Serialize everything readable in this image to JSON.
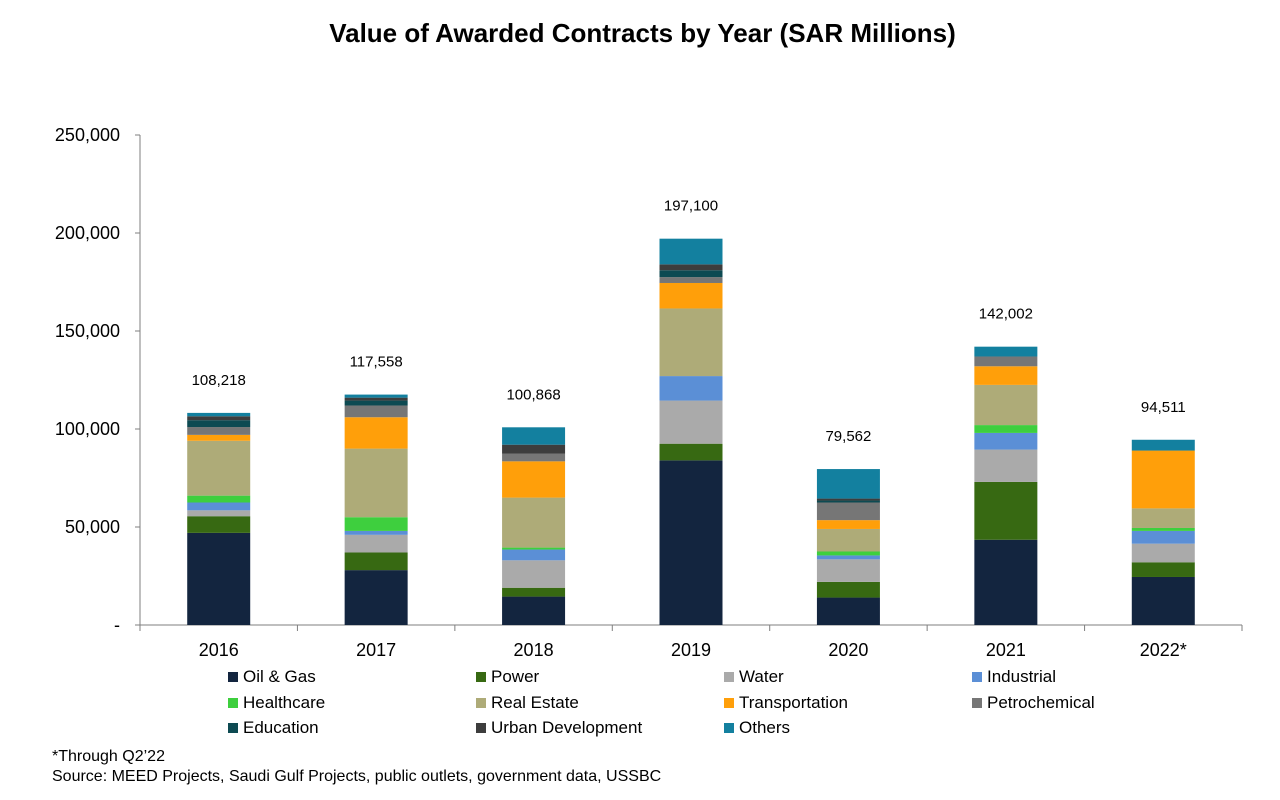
{
  "chart_data": {
    "type": "bar",
    "stacked": true,
    "title": "Value of Awarded Contracts by Year (SAR Millions)",
    "categories": [
      "2016",
      "2017",
      "2018",
      "2019",
      "2020",
      "2021",
      "2022*"
    ],
    "totals": [
      "108,218",
      "117,558",
      "100,868",
      "197,100",
      "79,562",
      "142,002",
      "94,511"
    ],
    "ylim": [
      0,
      250000
    ],
    "yticks": [
      0,
      50000,
      100000,
      150000,
      200000,
      250000
    ],
    "ytick_labels": [
      "-",
      "50,000",
      "100,000",
      "150,000",
      "200,000",
      "250,000"
    ],
    "grid": false,
    "legend_position": "bottom",
    "series": [
      {
        "name": "Oil & Gas",
        "color": "#13253f",
        "values": [
          47000,
          28000,
          14500,
          84000,
          14000,
          43500,
          24500
        ]
      },
      {
        "name": "Power",
        "color": "#376912",
        "values": [
          8500,
          9000,
          4500,
          8500,
          8000,
          29500,
          7500
        ]
      },
      {
        "name": "Water",
        "color": "#aaaaaa",
        "values": [
          3000,
          9000,
          14000,
          22000,
          11500,
          16500,
          9500
        ]
      },
      {
        "name": "Industrial",
        "color": "#5b8fd6",
        "values": [
          4000,
          2000,
          5500,
          12500,
          2000,
          8500,
          6500
        ]
      },
      {
        "name": "Healthcare",
        "color": "#3ecf3e",
        "values": [
          3500,
          7000,
          1000,
          0,
          2000,
          4000,
          1500
        ]
      },
      {
        "name": "Real Estate",
        "color": "#aeab78",
        "values": [
          28000,
          35000,
          25500,
          34500,
          11500,
          20500,
          10000
        ]
      },
      {
        "name": "Transportation",
        "color": "#ff9f0a",
        "values": [
          3000,
          16000,
          18500,
          13000,
          4500,
          9500,
          29500
        ]
      },
      {
        "name": "Petrochemical",
        "color": "#767676",
        "values": [
          4000,
          6000,
          4000,
          3000,
          9000,
          5000,
          0
        ]
      },
      {
        "name": "Education",
        "color": "#0d4a52",
        "values": [
          3500,
          2500,
          0,
          3500,
          1000,
          0,
          0
        ]
      },
      {
        "name": "Urban Development",
        "color": "#3d3d3d",
        "values": [
          2000,
          1500,
          4500,
          3000,
          1000,
          0,
          0
        ]
      },
      {
        "name": "Others",
        "color": "#13809f",
        "values": [
          1718,
          1558,
          8868,
          13100,
          15062,
          5002,
          5511
        ]
      }
    ]
  },
  "footnote": "*Through Q2’22",
  "source": "Source: MEED Projects, Saudi Gulf Projects, public outlets, government data, USSBC"
}
